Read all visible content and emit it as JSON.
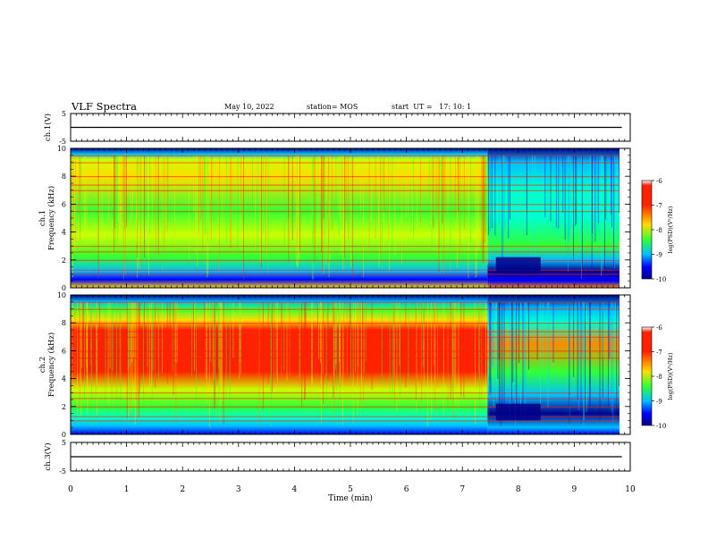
{
  "header": {
    "title": "VLF Spectra",
    "date": "May 10, 2022",
    "station": "station= MOS",
    "start": "start  UT =   17: 10: 1"
  },
  "colors": {
    "colormap": [
      "#00008b",
      "#0000ff",
      "#00bfff",
      "#00ffcc",
      "#33ff33",
      "#ccff00",
      "#ffdd00",
      "#ff8800",
      "#ff2200",
      "#ffffff"
    ]
  },
  "chart_data": [
    {
      "type": "line",
      "ylabel": "ch.1(V)",
      "ylim": [
        -5,
        5
      ],
      "yticks": [
        "5",
        "-5"
      ],
      "x": [
        0,
        10
      ],
      "values": [
        0,
        0
      ],
      "xlim": [
        0,
        10
      ]
    },
    {
      "type": "heatmap",
      "ylabel_top": "ch.1",
      "ylabel": "Frequency  (kHz)",
      "ylim": [
        0,
        10
      ],
      "yticks": [
        "0",
        "2",
        "4",
        "6",
        "8",
        "10"
      ],
      "xlim": [
        0,
        10
      ],
      "colorbar": {
        "label": "log(PSD)(V²/Hz)",
        "ticks": [
          "-6",
          "-7",
          "-8",
          "-9",
          "-10"
        ],
        "range": [
          -10,
          -6
        ]
      }
    },
    {
      "type": "heatmap",
      "ylabel_top": "ch.2",
      "ylabel": "Frequency  (kHz)",
      "ylim": [
        0,
        10
      ],
      "yticks": [
        "0",
        "2",
        "4",
        "6",
        "8",
        "10"
      ],
      "xlim": [
        0,
        10
      ],
      "colorbar": {
        "label": "log(PSD)(V²/Hz)",
        "ticks": [
          "-6",
          "-7",
          "-8",
          "-9",
          "-10"
        ],
        "range": [
          -10,
          -6
        ]
      }
    },
    {
      "type": "line",
      "ylabel": "ch.3(V)",
      "ylim": [
        -5,
        5
      ],
      "yticks": [
        "5",
        "-5"
      ],
      "x": [
        0,
        10
      ],
      "values": [
        0,
        0
      ],
      "xlim": [
        0,
        10
      ],
      "xlabel": "Time  (min)",
      "xticks": [
        "0",
        "1",
        "2",
        "3",
        "4",
        "5",
        "6",
        "7",
        "8",
        "9",
        "10"
      ]
    }
  ]
}
